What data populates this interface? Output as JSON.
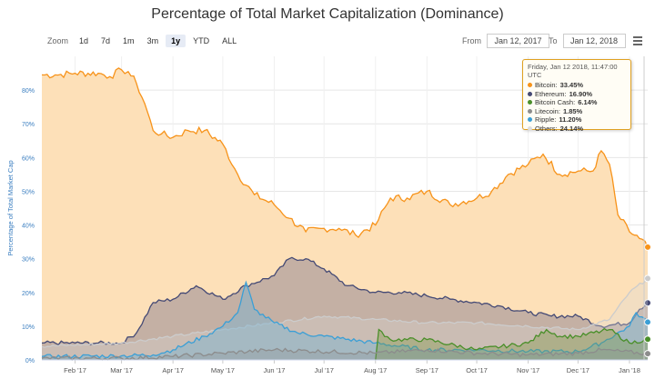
{
  "title": "Percentage of Total Market Capitalization (Dominance)",
  "zoom": {
    "label": "Zoom",
    "buttons": [
      "1d",
      "7d",
      "1m",
      "3m",
      "1y",
      "YTD",
      "ALL"
    ],
    "active": "1y"
  },
  "range": {
    "from_label": "From",
    "from_value": "Jan 12, 2017",
    "to_label": "To",
    "to_value": "Jan 12, 2018"
  },
  "tooltip": {
    "header": "Friday, Jan 12 2018, 11:47:00 UTC",
    "rows": [
      {
        "name": "Bitcoin:",
        "value": "33.45%",
        "color": "#f7931a"
      },
      {
        "name": "Ethereum:",
        "value": "16.90%",
        "color": "#454a75"
      },
      {
        "name": "Bitcoin Cash:",
        "value": "6.14%",
        "color": "#4a8f2a"
      },
      {
        "name": "Litecoin:",
        "value": "1.85%",
        "color": "#8c8c8c"
      },
      {
        "name": "Ripple:",
        "value": "11.20%",
        "color": "#3a9fd6"
      },
      {
        "name": "Others:",
        "value": "24.14%",
        "color": "#dddddd"
      }
    ]
  },
  "chart_data": {
    "type": "area",
    "title": "Percentage of Total Market Capitalization (Dominance)",
    "ylabel": "Percentage of Total Market Cap",
    "xlabel": "",
    "ylim": [
      0,
      90
    ],
    "yticks": [
      "0%",
      "10%",
      "20%",
      "30%",
      "40%",
      "50%",
      "60%",
      "70%",
      "80%"
    ],
    "xticks": [
      "Feb '17",
      "Mar '17",
      "Apr '17",
      "May '17",
      "Jun '17",
      "Jul '17",
      "Aug '17",
      "Sep '17",
      "Oct '17",
      "Nov '17",
      "Dec '17",
      "Jan '18"
    ],
    "x_domain": [
      "2017-01-12",
      "2018-01-12"
    ],
    "grid": true,
    "series": [
      {
        "name": "Bitcoin",
        "color": "#f7931a",
        "fill": "#fde0b8",
        "x": [
          "2017-01-12",
          "2017-01-20",
          "2017-02-01",
          "2017-02-15",
          "2017-02-22",
          "2017-03-01",
          "2017-03-05",
          "2017-03-10",
          "2017-03-15",
          "2017-03-20",
          "2017-03-25",
          "2017-04-01",
          "2017-04-10",
          "2017-04-20",
          "2017-05-01",
          "2017-05-10",
          "2017-05-20",
          "2017-06-01",
          "2017-06-10",
          "2017-06-20",
          "2017-07-01",
          "2017-07-10",
          "2017-07-20",
          "2017-08-01",
          "2017-08-10",
          "2017-08-20",
          "2017-09-01",
          "2017-09-15",
          "2017-10-01",
          "2017-10-10",
          "2017-10-20",
          "2017-11-01",
          "2017-11-10",
          "2017-11-20",
          "2017-12-01",
          "2017-12-10",
          "2017-12-15",
          "2017-12-20",
          "2017-12-25",
          "2018-01-01",
          "2018-01-07",
          "2018-01-12"
        ],
        "values": [
          84.5,
          84.5,
          85,
          85,
          84,
          86,
          85.5,
          82,
          76,
          68,
          67,
          66,
          68,
          68,
          64,
          55,
          49,
          46,
          42,
          38,
          39,
          39,
          37,
          40,
          48,
          48,
          50,
          46,
          48,
          50,
          55,
          58,
          61,
          55,
          56,
          56,
          62,
          58,
          43,
          38,
          36,
          33.45
        ]
      },
      {
        "name": "Ethereum",
        "color": "#454a75",
        "fill": "#c4b0a4",
        "x": [
          "2017-01-12",
          "2017-02-01",
          "2017-02-15",
          "2017-03-01",
          "2017-03-10",
          "2017-03-20",
          "2017-04-01",
          "2017-04-15",
          "2017-05-01",
          "2017-05-15",
          "2017-06-01",
          "2017-06-10",
          "2017-06-20",
          "2017-07-01",
          "2017-07-15",
          "2017-08-01",
          "2017-08-15",
          "2017-09-01",
          "2017-09-15",
          "2017-10-01",
          "2017-10-15",
          "2017-11-01",
          "2017-11-15",
          "2017-12-01",
          "2017-12-15",
          "2018-01-01",
          "2018-01-07",
          "2018-01-12"
        ],
        "values": [
          5,
          5,
          5,
          5,
          8,
          17,
          18,
          22,
          18,
          22,
          25,
          30,
          30,
          27,
          22,
          20,
          20,
          19,
          18,
          17,
          16,
          14,
          13,
          13,
          10,
          11,
          15,
          16.9
        ]
      },
      {
        "name": "Others",
        "color": "#cccccc",
        "fill": "rgba(220,220,220,0.3)",
        "x": [
          "2017-01-12",
          "2017-03-01",
          "2017-04-01",
          "2017-05-01",
          "2017-06-01",
          "2017-07-01",
          "2017-08-01",
          "2017-09-01",
          "2017-10-01",
          "2017-11-01",
          "2017-12-01",
          "2017-12-20",
          "2018-01-01",
          "2018-01-12"
        ],
        "values": [
          4,
          5,
          7,
          9,
          11,
          13,
          12,
          11,
          11,
          10,
          9,
          12,
          20,
          24.14
        ]
      },
      {
        "name": "Ripple",
        "color": "#3a9fd6",
        "fill": "rgba(120,180,210,0.45)",
        "x": [
          "2017-01-12",
          "2017-03-01",
          "2017-03-20",
          "2017-04-01",
          "2017-04-20",
          "2017-05-01",
          "2017-05-10",
          "2017-05-15",
          "2017-05-20",
          "2017-06-01",
          "2017-06-15",
          "2017-07-01",
          "2017-08-01",
          "2017-09-01",
          "2017-10-01",
          "2017-11-01",
          "2017-12-01",
          "2017-12-15",
          "2018-01-01",
          "2018-01-05",
          "2018-01-12"
        ],
        "values": [
          1,
          1.2,
          1.5,
          3,
          7,
          10,
          14,
          23,
          15,
          11,
          8,
          7,
          5,
          3,
          3,
          2.5,
          2.5,
          5,
          10,
          14,
          11.2
        ]
      },
      {
        "name": "Bitcoin Cash",
        "color": "#4a8f2a",
        "fill": "rgba(120,150,60,0.35)",
        "x": [
          "2017-08-01",
          "2017-08-03",
          "2017-08-10",
          "2017-09-01",
          "2017-10-01",
          "2017-11-01",
          "2017-11-12",
          "2017-11-20",
          "2017-12-01",
          "2017-12-20",
          "2018-01-01",
          "2018-01-12"
        ],
        "values": [
          0,
          9,
          6,
          6,
          3,
          5,
          9,
          7,
          7,
          9,
          5,
          6.14
        ]
      },
      {
        "name": "Litecoin",
        "color": "#8c8c8c",
        "fill": "rgba(140,140,140,0.25)",
        "x": [
          "2017-01-12",
          "2017-03-01",
          "2017-04-01",
          "2017-05-01",
          "2017-06-01",
          "2017-08-01",
          "2017-09-01",
          "2017-10-01",
          "2017-11-01",
          "2017-12-01",
          "2017-12-15",
          "2018-01-12"
        ],
        "values": [
          0.5,
          0.5,
          1,
          2,
          3,
          2,
          3,
          2,
          1.5,
          2,
          3,
          1.85
        ]
      }
    ]
  }
}
